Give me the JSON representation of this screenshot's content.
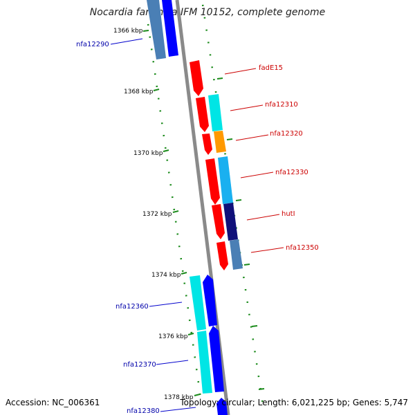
{
  "title": "Nocardia farcinica IFM 10152, complete genome",
  "accession": "Accession: NC_006361",
  "topology": "Topology: circular; Length: 6,021,225 bp; Genes: 5,747",
  "scale_labels": [
    "1366 kbp",
    "1368 kbp",
    "1370 kbp",
    "1372 kbp",
    "1374 kbp",
    "1376 kbp",
    "1378 kbp"
  ],
  "genes": [
    {
      "name": "nfa12290",
      "strand": "minus",
      "color": "#0000ff"
    },
    {
      "name": "fadE15",
      "strand": "plus",
      "color": "#ff0000"
    },
    {
      "name": "nfa12310",
      "strand": "plus",
      "color": "#ff0000"
    },
    {
      "name": "nfa12320",
      "strand": "plus",
      "color": "#ff0000"
    },
    {
      "name": "nfa12330",
      "strand": "plus",
      "color": "#ff0000"
    },
    {
      "name": "hutI",
      "strand": "plus",
      "color": "#ff0000"
    },
    {
      "name": "nfa12350",
      "strand": "plus",
      "color": "#ff0000"
    },
    {
      "name": "nfa12360",
      "strand": "minus",
      "color": "#0000ff"
    },
    {
      "name": "nfa12370",
      "strand": "minus",
      "color": "#0000ff"
    },
    {
      "name": "nfa12380",
      "strand": "minus",
      "color": "#0000ff"
    }
  ],
  "colors": {
    "backbone": "#888888",
    "tick": "#1a8a1a",
    "plus_label": "#cc0000",
    "minus_label": "#0000aa",
    "cyan": "#00e5e5",
    "lightblue": "#1ab0f0",
    "steelblue": "#4a7fb5",
    "orange": "#ff9900",
    "navy": "#10107a"
  }
}
